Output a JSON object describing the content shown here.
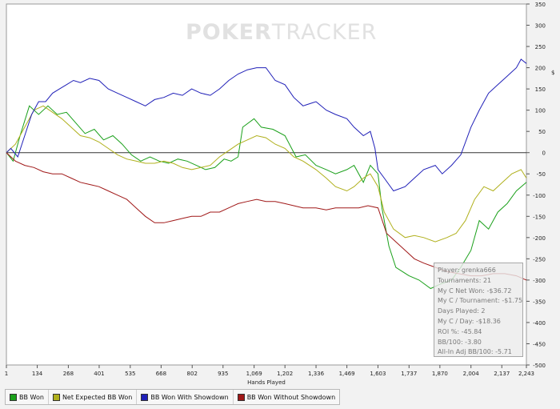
{
  "watermark": {
    "brand": "POKER",
    "brand_suffix": "TRACKER"
  },
  "stats": {
    "player": "Player: grenka666",
    "tournaments": "Tournaments: 21",
    "net_won": "My C Net Won: -$36.72",
    "per_tournament": "My C / Tournament: -$1.75",
    "days_played": "Days Played: 2",
    "per_day": "My C / Day: -$18.36",
    "roi": "ROI %: -45.84",
    "bb100": "BB/100: -3.80",
    "allin_bb100": "All-In Adj BB/100: -5.71"
  },
  "chart_data": {
    "type": "line",
    "xlabel": "Hands Played",
    "ylabel": "$",
    "xlim": [
      1,
      2243
    ],
    "ylim": [
      -500,
      350
    ],
    "x_ticks": [
      "1",
      "134",
      "268",
      "401",
      "535",
      "668",
      "802",
      "935",
      "1,069",
      "1,202",
      "1,336",
      "1,469",
      "1,603",
      "1,737",
      "1,870",
      "2,004",
      "2,137",
      "2,243"
    ],
    "x_tick_values": [
      1,
      134,
      268,
      401,
      535,
      668,
      802,
      935,
      1069,
      1202,
      1336,
      1469,
      1603,
      1737,
      1870,
      2004,
      2137,
      2243
    ],
    "y_ticks": [
      350,
      300,
      250,
      200,
      150,
      100,
      50,
      0,
      -50,
      -100,
      -150,
      -200,
      -250,
      -300,
      -350,
      -400,
      -450,
      -500
    ],
    "grid": true,
    "legend_position": "bottom",
    "series": [
      {
        "name": "BB Won",
        "color": "#1aa01a",
        "points": [
          [
            1,
            0
          ],
          [
            30,
            -20
          ],
          [
            60,
            40
          ],
          [
            100,
            110
          ],
          [
            140,
            90
          ],
          [
            180,
            110
          ],
          [
            220,
            90
          ],
          [
            260,
            95
          ],
          [
            300,
            70
          ],
          [
            340,
            45
          ],
          [
            380,
            55
          ],
          [
            420,
            30
          ],
          [
            460,
            40
          ],
          [
            500,
            20
          ],
          [
            540,
            -5
          ],
          [
            580,
            -20
          ],
          [
            620,
            -10
          ],
          [
            660,
            -20
          ],
          [
            700,
            -25
          ],
          [
            740,
            -15
          ],
          [
            780,
            -20
          ],
          [
            820,
            -30
          ],
          [
            860,
            -40
          ],
          [
            900,
            -35
          ],
          [
            940,
            -15
          ],
          [
            970,
            -20
          ],
          [
            1000,
            -10
          ],
          [
            1020,
            60
          ],
          [
            1069,
            80
          ],
          [
            1100,
            60
          ],
          [
            1150,
            55
          ],
          [
            1202,
            40
          ],
          [
            1250,
            -10
          ],
          [
            1290,
            -5
          ],
          [
            1336,
            -30
          ],
          [
            1380,
            -40
          ],
          [
            1420,
            -50
          ],
          [
            1469,
            -40
          ],
          [
            1500,
            -30
          ],
          [
            1540,
            -70
          ],
          [
            1570,
            -30
          ],
          [
            1603,
            -50
          ],
          [
            1620,
            -130
          ],
          [
            1650,
            -220
          ],
          [
            1680,
            -270
          ],
          [
            1737,
            -290
          ],
          [
            1780,
            -300
          ],
          [
            1830,
            -320
          ],
          [
            1870,
            -310
          ],
          [
            1920,
            -300
          ],
          [
            1960,
            -270
          ],
          [
            2004,
            -230
          ],
          [
            2040,
            -160
          ],
          [
            2080,
            -180
          ],
          [
            2120,
            -140
          ],
          [
            2160,
            -120
          ],
          [
            2200,
            -90
          ],
          [
            2243,
            -70
          ]
        ]
      },
      {
        "name": "Net Expected BB Won",
        "color": "#b0b01c",
        "points": [
          [
            1,
            0
          ],
          [
            40,
            20
          ],
          [
            80,
            60
          ],
          [
            120,
            100
          ],
          [
            160,
            110
          ],
          [
            200,
            95
          ],
          [
            240,
            80
          ],
          [
            280,
            60
          ],
          [
            320,
            40
          ],
          [
            360,
            35
          ],
          [
            400,
            25
          ],
          [
            440,
            10
          ],
          [
            480,
            -5
          ],
          [
            520,
            -15
          ],
          [
            560,
            -20
          ],
          [
            600,
            -25
          ],
          [
            640,
            -25
          ],
          [
            680,
            -20
          ],
          [
            720,
            -25
          ],
          [
            760,
            -35
          ],
          [
            800,
            -40
          ],
          [
            840,
            -35
          ],
          [
            880,
            -30
          ],
          [
            920,
            -10
          ],
          [
            960,
            5
          ],
          [
            1000,
            20
          ],
          [
            1040,
            30
          ],
          [
            1080,
            40
          ],
          [
            1120,
            35
          ],
          [
            1160,
            20
          ],
          [
            1202,
            10
          ],
          [
            1240,
            -10
          ],
          [
            1280,
            -20
          ],
          [
            1336,
            -40
          ],
          [
            1380,
            -60
          ],
          [
            1420,
            -80
          ],
          [
            1469,
            -90
          ],
          [
            1500,
            -80
          ],
          [
            1540,
            -60
          ],
          [
            1570,
            -50
          ],
          [
            1603,
            -80
          ],
          [
            1630,
            -140
          ],
          [
            1670,
            -180
          ],
          [
            1720,
            -200
          ],
          [
            1760,
            -195
          ],
          [
            1800,
            -200
          ],
          [
            1850,
            -210
          ],
          [
            1900,
            -200
          ],
          [
            1940,
            -190
          ],
          [
            1980,
            -160
          ],
          [
            2020,
            -110
          ],
          [
            2060,
            -80
          ],
          [
            2100,
            -90
          ],
          [
            2140,
            -70
          ],
          [
            2180,
            -50
          ],
          [
            2220,
            -40
          ],
          [
            2243,
            -60
          ]
        ]
      },
      {
        "name": "BB Won With Showdown",
        "color": "#2020b8",
        "points": [
          [
            1,
            0
          ],
          [
            20,
            10
          ],
          [
            50,
            -10
          ],
          [
            80,
            40
          ],
          [
            110,
            90
          ],
          [
            140,
            120
          ],
          [
            170,
            120
          ],
          [
            200,
            140
          ],
          [
            230,
            150
          ],
          [
            260,
            160
          ],
          [
            290,
            170
          ],
          [
            320,
            165
          ],
          [
            360,
            175
          ],
          [
            400,
            170
          ],
          [
            440,
            150
          ],
          [
            480,
            140
          ],
          [
            520,
            130
          ],
          [
            560,
            120
          ],
          [
            600,
            110
          ],
          [
            640,
            125
          ],
          [
            680,
            130
          ],
          [
            720,
            140
          ],
          [
            760,
            135
          ],
          [
            800,
            150
          ],
          [
            840,
            140
          ],
          [
            880,
            135
          ],
          [
            920,
            150
          ],
          [
            960,
            170
          ],
          [
            1000,
            185
          ],
          [
            1040,
            195
          ],
          [
            1080,
            200
          ],
          [
            1120,
            200
          ],
          [
            1160,
            170
          ],
          [
            1202,
            160
          ],
          [
            1240,
            130
          ],
          [
            1280,
            110
          ],
          [
            1336,
            120
          ],
          [
            1380,
            100
          ],
          [
            1420,
            90
          ],
          [
            1469,
            80
          ],
          [
            1500,
            60
          ],
          [
            1540,
            40
          ],
          [
            1570,
            50
          ],
          [
            1590,
            10
          ],
          [
            1603,
            -40
          ],
          [
            1630,
            -60
          ],
          [
            1670,
            -90
          ],
          [
            1720,
            -80
          ],
          [
            1760,
            -60
          ],
          [
            1800,
            -40
          ],
          [
            1850,
            -30
          ],
          [
            1880,
            -50
          ],
          [
            1920,
            -30
          ],
          [
            1960,
            -5
          ],
          [
            2004,
            60
          ],
          [
            2040,
            100
          ],
          [
            2080,
            140
          ],
          [
            2120,
            160
          ],
          [
            2160,
            180
          ],
          [
            2200,
            200
          ],
          [
            2220,
            220
          ],
          [
            2243,
            210
          ]
        ]
      },
      {
        "name": "BB Won Without Showdown",
        "color": "#a01818",
        "points": [
          [
            1,
            0
          ],
          [
            40,
            -20
          ],
          [
            80,
            -30
          ],
          [
            120,
            -35
          ],
          [
            160,
            -45
          ],
          [
            200,
            -50
          ],
          [
            240,
            -50
          ],
          [
            280,
            -60
          ],
          [
            320,
            -70
          ],
          [
            360,
            -75
          ],
          [
            400,
            -80
          ],
          [
            440,
            -90
          ],
          [
            480,
            -100
          ],
          [
            520,
            -110
          ],
          [
            560,
            -130
          ],
          [
            600,
            -150
          ],
          [
            640,
            -165
          ],
          [
            680,
            -165
          ],
          [
            720,
            -160
          ],
          [
            760,
            -155
          ],
          [
            800,
            -150
          ],
          [
            840,
            -150
          ],
          [
            880,
            -140
          ],
          [
            920,
            -140
          ],
          [
            960,
            -130
          ],
          [
            1000,
            -120
          ],
          [
            1040,
            -115
          ],
          [
            1080,
            -110
          ],
          [
            1120,
            -115
          ],
          [
            1160,
            -115
          ],
          [
            1202,
            -120
          ],
          [
            1240,
            -125
          ],
          [
            1280,
            -130
          ],
          [
            1336,
            -130
          ],
          [
            1380,
            -135
          ],
          [
            1420,
            -130
          ],
          [
            1469,
            -130
          ],
          [
            1520,
            -130
          ],
          [
            1560,
            -125
          ],
          [
            1603,
            -130
          ],
          [
            1640,
            -190
          ],
          [
            1680,
            -210
          ],
          [
            1720,
            -230
          ],
          [
            1760,
            -250
          ],
          [
            1800,
            -260
          ],
          [
            1850,
            -270
          ],
          [
            1900,
            -280
          ],
          [
            1950,
            -285
          ],
          [
            2004,
            -290
          ],
          [
            2050,
            -290
          ],
          [
            2100,
            -285
          ],
          [
            2150,
            -285
          ],
          [
            2200,
            -290
          ],
          [
            2243,
            -300
          ]
        ]
      }
    ]
  }
}
